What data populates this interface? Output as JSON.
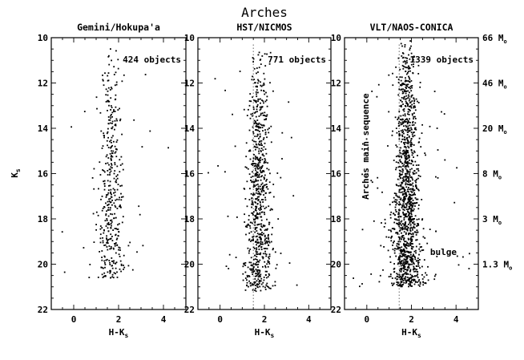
{
  "chart_data": {
    "type": "scatter",
    "title": "Arches",
    "shared": {
      "xlabel": "H-K",
      "xlabel_sub": "s",
      "ylabel": "K",
      "ylabel_sub": "s",
      "xlim": [
        -1,
        5
      ],
      "ylim": [
        22,
        10
      ],
      "xticks": [
        0,
        2,
        4
      ],
      "yticks": [
        10,
        12,
        14,
        16,
        18,
        20,
        22
      ]
    },
    "panels": [
      {
        "title": "Gemini/Hokupa'a",
        "count_label": "424 objects",
        "n": 424,
        "dashed_x": null,
        "distribution": {
          "center": 1.65,
          "spread": 0.38,
          "kmin": 10.4,
          "kmax": 20.6
        }
      },
      {
        "title": "HST/NICMOS",
        "count_label": "771 objects",
        "n": 771,
        "dashed_x": 1.5,
        "distribution": {
          "center": 1.75,
          "spread": 0.4,
          "kmin": 10.3,
          "kmax": 21.2
        }
      },
      {
        "title": "VLT/NAOS-CONICA",
        "count_label": "1339 objects",
        "n": 1339,
        "dashed_x": 1.45,
        "distribution": {
          "center": 1.8,
          "spread": 0.42,
          "kmin": 10.0,
          "kmax": 21.0
        },
        "annotations": {
          "main_sequence": "Arches main sequence",
          "bulge": "bulge"
        },
        "mass_labels": [
          {
            "k": 10.0,
            "value": "66",
            "unit": "M",
            "sub": "o"
          },
          {
            "k": 12.0,
            "value": "46",
            "unit": "M",
            "sub": "o"
          },
          {
            "k": 14.0,
            "value": "20",
            "unit": "M",
            "sub": "o"
          },
          {
            "k": 16.0,
            "value": "8",
            "unit": "M",
            "sub": "o"
          },
          {
            "k": 18.0,
            "value": "3",
            "unit": "M",
            "sub": "o"
          },
          {
            "k": 20.0,
            "value": "1.3",
            "unit": "M",
            "sub": "o"
          }
        ]
      }
    ]
  }
}
